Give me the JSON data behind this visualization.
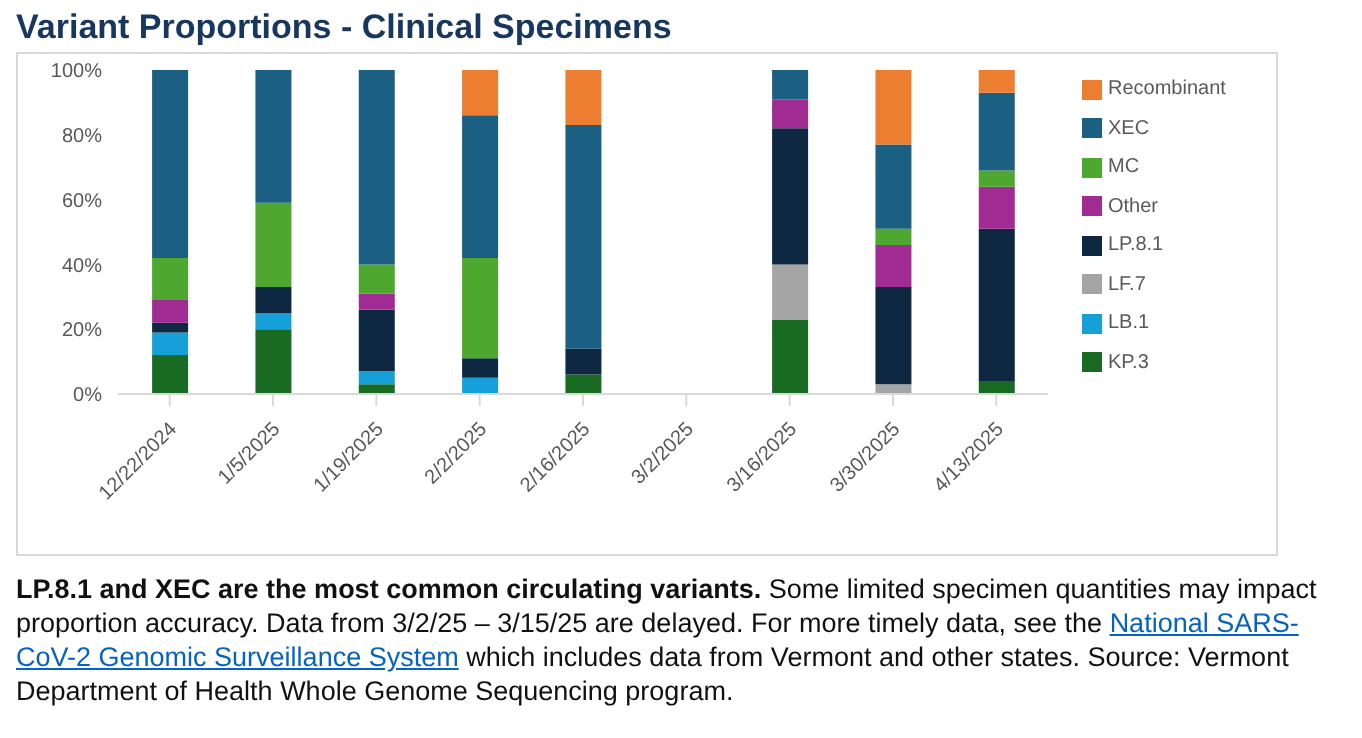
{
  "chart_data": {
    "type": "bar",
    "title": "Variant Proportions - Clinical Specimens",
    "categories": [
      "12/22/2024",
      "1/5/2025",
      "1/19/2025",
      "2/2/2025",
      "2/16/2025",
      "3/2/2025",
      "3/16/2025",
      "3/30/2025",
      "4/13/2025"
    ],
    "stacked": true,
    "series": [
      {
        "name": "KP.3",
        "color": "#196b24",
        "values": [
          12,
          20,
          3,
          0,
          6,
          null,
          23,
          0,
          4
        ]
      },
      {
        "name": "LB.1",
        "color": "#16a0d9",
        "values": [
          7,
          5,
          4,
          5,
          0,
          null,
          0,
          0,
          0
        ]
      },
      {
        "name": "LF.7",
        "color": "#a5a5a5",
        "values": [
          0,
          0,
          0,
          0,
          0,
          null,
          17,
          3,
          0
        ]
      },
      {
        "name": "LP.8.1",
        "color": "#0e2841",
        "values": [
          3,
          8,
          19,
          6,
          8,
          null,
          42,
          30,
          47
        ]
      },
      {
        "name": "Other",
        "color": "#a02b93",
        "values": [
          7,
          0,
          5,
          0,
          0,
          null,
          9,
          13,
          13
        ]
      },
      {
        "name": "MC",
        "color": "#4ea72e",
        "values": [
          13,
          26,
          9,
          31,
          0,
          null,
          0,
          5,
          5
        ]
      },
      {
        "name": "XEC",
        "color": "#1b5f82",
        "values": [
          58,
          41,
          60,
          44,
          69,
          null,
          9,
          26,
          24
        ]
      },
      {
        "name": "Recombinant",
        "color": "#ed7d31",
        "values": [
          0,
          0,
          0,
          14,
          17,
          null,
          0,
          23,
          7
        ]
      }
    ],
    "ylim": [
      0,
      100
    ],
    "yticks": [
      {
        "value": 0,
        "label": "0%"
      },
      {
        "value": 20,
        "label": "20%"
      },
      {
        "value": 40,
        "label": "40%"
      },
      {
        "value": 60,
        "label": "60%"
      },
      {
        "value": 80,
        "label": "80%"
      },
      {
        "value": 100,
        "label": "100%"
      }
    ],
    "grid": false,
    "legend": "right",
    "annotations": [
      "LP.8.1 and XEC are the most common circulating variants.",
      "Some limited specimen quantities may impact proportion accuracy. Data from 3/2/25 – 3/15/25 are delayed. For more timely data, see the",
      "National SARS-CoV-2 Genomic Surveillance System",
      "which includes data from Vermont and other states. Source: Vermont Department of Health Whole Genome Sequencing program."
    ]
  }
}
